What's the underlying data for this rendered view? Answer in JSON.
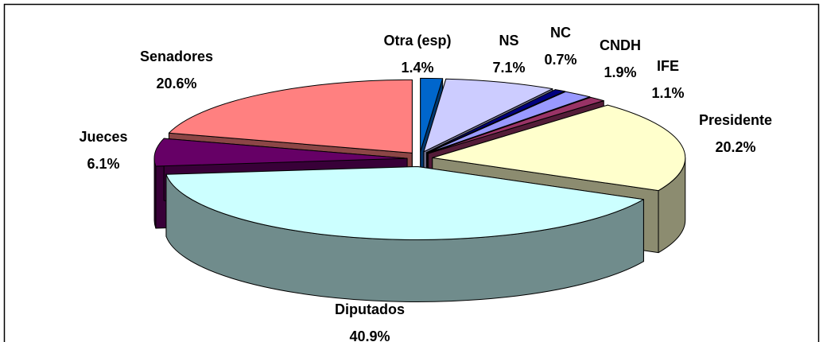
{
  "chart_data": {
    "type": "pie3d",
    "categories": [
      "Otra (esp)",
      "NS",
      "NC",
      "CNDH",
      "IFE",
      "Presidente",
      "Diputados",
      "Jueces",
      "Senadores"
    ],
    "values": [
      1.4,
      7.1,
      0.7,
      1.9,
      1.1,
      20.2,
      40.9,
      6.1,
      20.6
    ],
    "value_labels": [
      "1.4%",
      "7.1%",
      "0.7%",
      "1.9%",
      "1.1%",
      "20.2%",
      "40.9%",
      "6.1%",
      "20.6%"
    ],
    "colors": [
      "#0066cc",
      "#ccccff",
      "#000080",
      "#9999ff",
      "#993366",
      "#ffffcc",
      "#ccffff",
      "#660066",
      "#ff8080"
    ]
  }
}
